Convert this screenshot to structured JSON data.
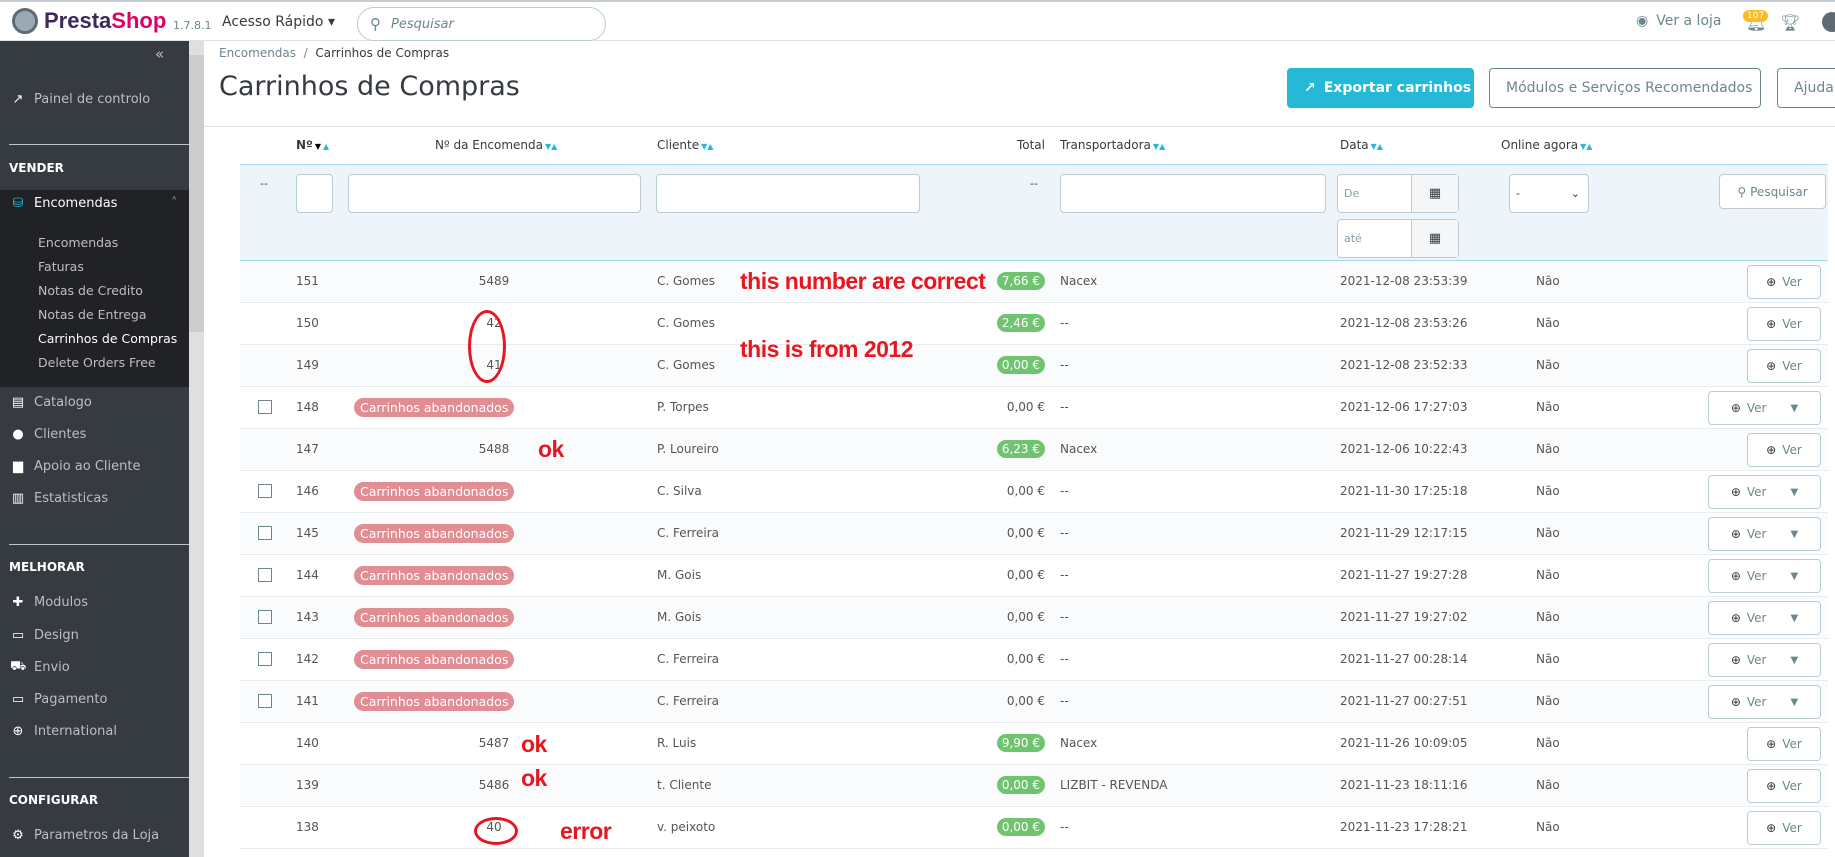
{
  "header": {
    "brand": "PrestaShop",
    "version": "1.7.8.1",
    "quick_access": "Acesso Rápido",
    "search_placeholder": "Pesquisar",
    "view_store": "Ver a loja",
    "notifications": "107"
  },
  "sidebar": {
    "dashboard": "Painel de controlo",
    "sections": {
      "sell": "VENDER",
      "improve": "MELHORAR",
      "configure": "CONFIGURAR"
    },
    "orders": "Encomendas",
    "orders_sub": [
      "Encomendas",
      "Faturas",
      "Notas de Credito",
      "Notas de Entrega",
      "Carrinhos de Compras",
      "Delete Orders Free"
    ],
    "sell_items": [
      "Catalogo",
      "Clientes",
      "Apoio ao Cliente",
      "Estatisticas"
    ],
    "improve_items": [
      "Modulos",
      "Design",
      "Envio",
      "Pagamento",
      "International"
    ],
    "configure_items": [
      "Parametros da Loja"
    ]
  },
  "breadcrumb": {
    "parent": "Encomendas",
    "current": "Carrinhos de Compras"
  },
  "page": {
    "title": "Carrinhos de Compras",
    "export": "Exportar carrinhos",
    "modules": "Módulos e Serviços Recomendados",
    "help": "Ajuda"
  },
  "table": {
    "columns": {
      "id": "Nº",
      "order": "Nº da Encomenda",
      "customer": "Cliente",
      "total": "Total",
      "carrier": "Transportadora",
      "date": "Data",
      "online": "Online agora"
    },
    "filters": {
      "dash": "--",
      "date_from": "De",
      "date_to": "até",
      "online_value": "-",
      "search": "Pesquisar"
    },
    "view_label": "Ver",
    "abandoned_label": "Carrinhos abandonados",
    "rows": [
      {
        "id": "151",
        "order": "5489",
        "customer": "C. Gomes",
        "total": "7,66 €",
        "paid": true,
        "carrier": "Nacex",
        "date": "2021-12-08 23:53:39",
        "online": "Não"
      },
      {
        "id": "150",
        "order": "42",
        "customer": "C. Gomes",
        "total": "2,46 €",
        "paid": true,
        "carrier": "--",
        "date": "2021-12-08 23:53:26",
        "online": "Não"
      },
      {
        "id": "149",
        "order": "41",
        "customer": "C. Gomes",
        "total": "0,00 €",
        "paid": true,
        "carrier": "--",
        "date": "2021-12-08 23:52:33",
        "online": "Não"
      },
      {
        "id": "148",
        "order": null,
        "customer": "P. Torpes",
        "total": "0,00 €",
        "paid": false,
        "carrier": "--",
        "date": "2021-12-06 17:27:03",
        "online": "Não"
      },
      {
        "id": "147",
        "order": "5488",
        "customer": "P. Loureiro",
        "total": "6,23 €",
        "paid": true,
        "carrier": "Nacex",
        "date": "2021-12-06 10:22:43",
        "online": "Não"
      },
      {
        "id": "146",
        "order": null,
        "customer": "C. Silva",
        "total": "0,00 €",
        "paid": false,
        "carrier": "--",
        "date": "2021-11-30 17:25:18",
        "online": "Não"
      },
      {
        "id": "145",
        "order": null,
        "customer": "C. Ferreira",
        "total": "0,00 €",
        "paid": false,
        "carrier": "--",
        "date": "2021-11-29 12:17:15",
        "online": "Não"
      },
      {
        "id": "144",
        "order": null,
        "customer": "M. Gois",
        "total": "0,00 €",
        "paid": false,
        "carrier": "--",
        "date": "2021-11-27 19:27:28",
        "online": "Não"
      },
      {
        "id": "143",
        "order": null,
        "customer": "M. Gois",
        "total": "0,00 €",
        "paid": false,
        "carrier": "--",
        "date": "2021-11-27 19:27:02",
        "online": "Não"
      },
      {
        "id": "142",
        "order": null,
        "customer": "C. Ferreira",
        "total": "0,00 €",
        "paid": false,
        "carrier": "--",
        "date": "2021-11-27 00:28:14",
        "online": "Não"
      },
      {
        "id": "141",
        "order": null,
        "customer": "C. Ferreira",
        "total": "0,00 €",
        "paid": false,
        "carrier": "--",
        "date": "2021-11-27 00:27:51",
        "online": "Não"
      },
      {
        "id": "140",
        "order": "5487",
        "customer": "R. Luis",
        "total": "9,90 €",
        "paid": true,
        "carrier": "Nacex",
        "date": "2021-11-26 10:09:05",
        "online": "Não"
      },
      {
        "id": "139",
        "order": "5486",
        "customer": "t. Cliente",
        "total": "0,00 €",
        "paid": true,
        "carrier": "LIZBIT - REVENDA",
        "date": "2021-11-23 18:11:16",
        "online": "Não"
      },
      {
        "id": "138",
        "order": "40",
        "customer": "v. peixoto",
        "total": "0,00 €",
        "paid": true,
        "carrier": "--",
        "date": "2021-11-23 17:28:21",
        "online": "Não"
      }
    ]
  },
  "annotations": {
    "correct": "this number are correct",
    "from2012": "this is from 2012",
    "ok1": "ok",
    "ok2": "ok",
    "ok3": "ok",
    "error": "error"
  },
  "colors": {
    "accent": "#25b9d7",
    "paid_badge": "#70c46f",
    "abandoned_badge": "#e08d94",
    "annotation": "#e8161e",
    "sidebar": "#363a41"
  }
}
